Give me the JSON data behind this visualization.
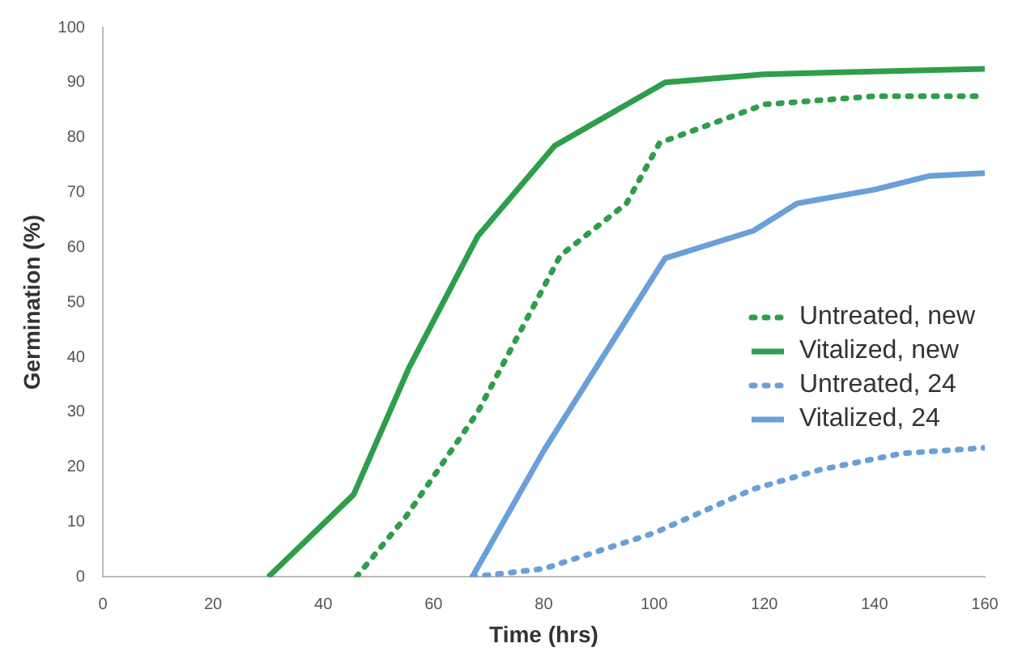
{
  "chart_data": {
    "type": "line",
    "xlabel": "Time (hrs)",
    "ylabel": "Germination (%)",
    "xlim": [
      0,
      160
    ],
    "xticks": [
      0,
      20,
      40,
      60,
      80,
      100,
      120,
      140,
      160
    ],
    "ylim": [
      0,
      100
    ],
    "yticks": [
      0,
      10,
      20,
      30,
      40,
      50,
      60,
      70,
      80,
      90,
      100
    ],
    "grid": false,
    "legend": "right",
    "marker": "none",
    "series": [
      {
        "name": "Untreated, new",
        "color": "#2e9e4a",
        "line_style": "dotted",
        "x": [
          46,
          55,
          68,
          83,
          95,
          101,
          120,
          140,
          160
        ],
        "values": [
          0,
          11,
          30,
          58.5,
          68,
          79,
          86,
          87.5,
          87.5
        ]
      },
      {
        "name": "Vitalized, new",
        "color": "#2e9e4a",
        "line_style": "solid",
        "x": [
          30,
          45.5,
          55.5,
          68,
          82,
          102,
          120,
          140,
          160
        ],
        "values": [
          0,
          15,
          38,
          62,
          78.5,
          90,
          91.5,
          92,
          92.5
        ]
      },
      {
        "name": "Untreated, 24",
        "color": "#6a9fd8",
        "line_style": "dotted",
        "x": [
          67,
          80,
          100,
          118,
          130,
          145,
          160
        ],
        "values": [
          0,
          1.5,
          8,
          16,
          19.5,
          22.5,
          23.5
        ]
      },
      {
        "name": "Vitalized, 24",
        "color": "#6a9fd8",
        "line_style": "solid",
        "x": [
          67,
          80,
          102,
          118,
          126,
          140,
          150,
          160
        ],
        "values": [
          0,
          23,
          58,
          63,
          68,
          70.5,
          73,
          73.5
        ]
      }
    ]
  }
}
